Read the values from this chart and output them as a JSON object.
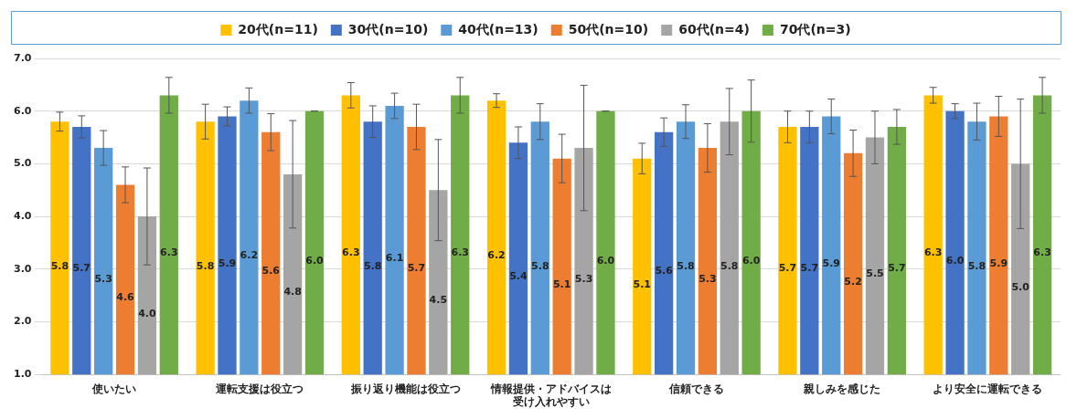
{
  "chart_data": {
    "type": "bar",
    "categories": [
      "使いたい",
      "運転支援は役立つ",
      "振り返り機能は役立つ",
      "情報提供・アドバイスは受け入れやすい",
      "信頼できる",
      "親しみを感じた",
      "より安全に運転できる"
    ],
    "series": [
      {
        "name": "20代(n=11)",
        "color": "#ffc000",
        "values": [
          5.8,
          5.8,
          6.3,
          6.2,
          5.1,
          5.7,
          6.3
        ],
        "value_labels": [
          "5.8",
          "5.8",
          "6.3",
          "6.2",
          "5.1",
          "5.7",
          "6.3"
        ],
        "errors": [
          0.18,
          0.33,
          0.24,
          0.13,
          0.29,
          0.3,
          0.15
        ]
      },
      {
        "name": "30代(n=10)",
        "color": "#4472c4",
        "values": [
          5.7,
          5.9,
          5.8,
          5.4,
          5.6,
          5.7,
          6
        ],
        "value_labels": [
          "5.7",
          "5.9",
          "5.8",
          "5.4",
          "5.6",
          "5.7",
          "6.0"
        ],
        "errors": [
          0.21,
          0.18,
          0.3,
          0.3,
          0.27,
          0.3,
          0.14
        ]
      },
      {
        "name": "40代(n=13)",
        "color": "#5b9bd5",
        "values": [
          5.3,
          6.2,
          6.1,
          5.8,
          5.8,
          5.9,
          5.8
        ],
        "value_labels": [
          "5.3",
          "6.2",
          "6.1",
          "5.8",
          "5.8",
          "5.9",
          "5.8"
        ],
        "errors": [
          0.33,
          0.24,
          0.24,
          0.34,
          0.32,
          0.33,
          0.35
        ]
      },
      {
        "name": "50代(n=10)",
        "color": "#ed7d31",
        "values": [
          4.6,
          5.6,
          5.7,
          5.1,
          5.3,
          5.2,
          5.9
        ],
        "value_labels": [
          "4.6",
          "5.6",
          "5.7",
          "5.1",
          "5.3",
          "5.2",
          "5.9"
        ],
        "errors": [
          0.34,
          0.35,
          0.43,
          0.46,
          0.46,
          0.44,
          0.38
        ]
      },
      {
        "name": "60代(n=4)",
        "color": "#a5a5a5",
        "values": [
          4,
          4.8,
          4.5,
          5.3,
          5.8,
          5.5,
          5
        ],
        "value_labels": [
          "4.0",
          "4.8",
          "4.5",
          "5.3",
          "5.8",
          "5.5",
          "5.0"
        ],
        "errors": [
          0.92,
          1.02,
          0.96,
          1.19,
          0.63,
          0.5,
          1.23
        ]
      },
      {
        "name": "70代(n=3)",
        "color": "#70ad47",
        "values": [
          6.3,
          6,
          6.3,
          6,
          6,
          5.7,
          6.3
        ],
        "value_labels": [
          "6.3",
          "6.0",
          "6.3",
          "6.0",
          "6.0",
          "5.7",
          "6.3"
        ],
        "errors": [
          0.34,
          0,
          0.34,
          0,
          0.59,
          0.33,
          0.34
        ]
      }
    ],
    "ylim": [
      1,
      7
    ],
    "yticks": [
      {
        "value": 1,
        "label": "1.0"
      },
      {
        "value": 2,
        "label": "2.0"
      },
      {
        "value": 3,
        "label": "3.0"
      },
      {
        "value": 4,
        "label": "4.0"
      },
      {
        "value": 5,
        "label": "5.0"
      },
      {
        "value": 6,
        "label": "6.0"
      },
      {
        "value": 7,
        "label": "7.0"
      }
    ],
    "grid": "y",
    "legend": "top"
  }
}
